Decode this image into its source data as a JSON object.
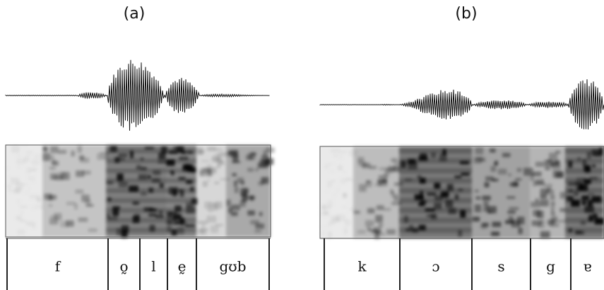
{
  "panels": [
    {
      "label": "(a)",
      "segments": [
        "f",
        "o̰",
        "l",
        "ḛ",
        "gʊb"
      ]
    },
    {
      "label": "(b)",
      "segments": [
        "k",
        "ɔ",
        "s",
        "g",
        "ɐ"
      ]
    }
  ]
}
